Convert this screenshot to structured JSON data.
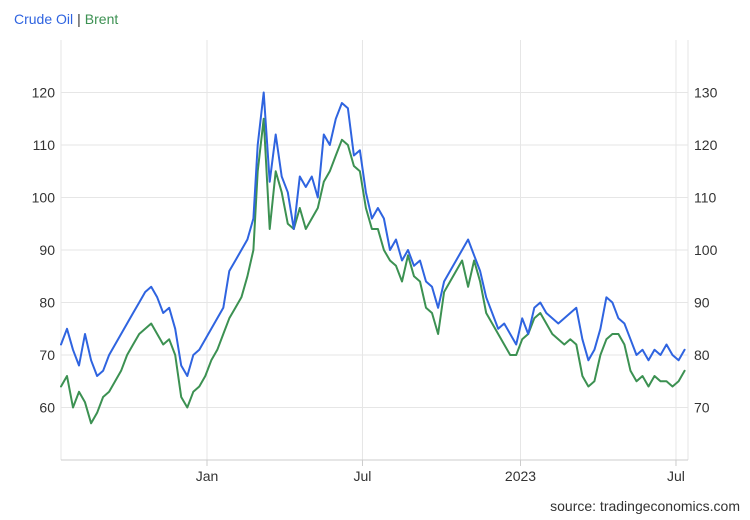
{
  "legend": {
    "series_1": "Crude Oil",
    "separator": "|",
    "series_2": "Brent"
  },
  "source": "source: tradingeconomics.com",
  "colors": {
    "crude": "#2f64e0",
    "brent": "#3c9152",
    "grid": "#e6e6e6",
    "axis": "#cccccc"
  },
  "chart_data": {
    "type": "line",
    "title": "",
    "legend_placement": "top-left",
    "grid": true,
    "x_tick_labels": [
      "Jan",
      "Jul",
      "2023",
      "Jul"
    ],
    "x_tick_dates": [
      "2022-01-01",
      "2022-07-01",
      "2023-01-01",
      "2023-07-01"
    ],
    "x_range": [
      "2021-07-15",
      "2023-07-15"
    ],
    "y_left": {
      "range": [
        50,
        130
      ],
      "ticks": [
        60,
        70,
        80,
        90,
        100,
        110,
        120
      ]
    },
    "y_right": {
      "range": [
        60,
        140
      ],
      "ticks": [
        70,
        80,
        90,
        100,
        110,
        120,
        130
      ]
    },
    "series": [
      {
        "name": "Crude Oil",
        "axis": "left",
        "x": [
          "2021-07-15",
          "2021-07-22",
          "2021-07-29",
          "2021-08-05",
          "2021-08-12",
          "2021-08-19",
          "2021-08-26",
          "2021-09-02",
          "2021-09-09",
          "2021-09-16",
          "2021-09-23",
          "2021-09-30",
          "2021-10-07",
          "2021-10-14",
          "2021-10-21",
          "2021-10-28",
          "2021-11-04",
          "2021-11-11",
          "2021-11-18",
          "2021-11-25",
          "2021-12-02",
          "2021-12-09",
          "2021-12-16",
          "2021-12-23",
          "2021-12-30",
          "2022-01-06",
          "2022-01-13",
          "2022-01-20",
          "2022-01-27",
          "2022-02-03",
          "2022-02-10",
          "2022-02-17",
          "2022-02-24",
          "2022-03-01",
          "2022-03-08",
          "2022-03-15",
          "2022-03-22",
          "2022-03-29",
          "2022-04-05",
          "2022-04-12",
          "2022-04-19",
          "2022-04-26",
          "2022-05-03",
          "2022-05-10",
          "2022-05-17",
          "2022-05-24",
          "2022-05-31",
          "2022-06-07",
          "2022-06-14",
          "2022-06-21",
          "2022-06-28",
          "2022-07-05",
          "2022-07-12",
          "2022-07-19",
          "2022-07-26",
          "2022-08-02",
          "2022-08-09",
          "2022-08-16",
          "2022-08-23",
          "2022-08-30",
          "2022-09-06",
          "2022-09-13",
          "2022-09-20",
          "2022-09-27",
          "2022-10-04",
          "2022-10-11",
          "2022-10-18",
          "2022-10-25",
          "2022-11-01",
          "2022-11-08",
          "2022-11-15",
          "2022-11-22",
          "2022-11-29",
          "2022-12-06",
          "2022-12-13",
          "2022-12-20",
          "2022-12-27",
          "2023-01-03",
          "2023-01-10",
          "2023-01-17",
          "2023-01-24",
          "2023-01-31",
          "2023-02-07",
          "2023-02-14",
          "2023-02-21",
          "2023-02-28",
          "2023-03-07",
          "2023-03-14",
          "2023-03-21",
          "2023-03-28",
          "2023-04-04",
          "2023-04-11",
          "2023-04-18",
          "2023-04-25",
          "2023-05-02",
          "2023-05-09",
          "2023-05-16",
          "2023-05-23",
          "2023-05-30",
          "2023-06-06",
          "2023-06-13",
          "2023-06-20",
          "2023-06-27",
          "2023-07-04",
          "2023-07-11"
        ],
        "values": [
          72,
          75,
          71,
          68,
          74,
          69,
          66,
          67,
          70,
          72,
          74,
          76,
          78,
          80,
          82,
          83,
          81,
          78,
          79,
          75,
          68,
          66,
          70,
          71,
          73,
          75,
          77,
          79,
          86,
          88,
          90,
          92,
          96,
          110,
          120,
          103,
          112,
          104,
          101,
          94,
          104,
          102,
          104,
          100,
          112,
          110,
          115,
          118,
          117,
          108,
          109,
          101,
          96,
          98,
          96,
          90,
          92,
          88,
          90,
          87,
          88,
          84,
          83,
          79,
          84,
          86,
          88,
          90,
          92,
          89,
          86,
          81,
          78,
          75,
          76,
          74,
          72,
          77,
          74,
          79,
          80,
          78,
          77,
          76,
          77,
          78,
          79,
          73,
          69,
          71,
          75,
          81,
          80,
          77,
          76,
          73,
          70,
          71,
          69,
          71,
          70,
          72,
          70,
          69,
          71
        ]
      },
      {
        "name": "Brent",
        "axis": "right",
        "x": [
          "2021-07-15",
          "2021-07-22",
          "2021-07-29",
          "2021-08-05",
          "2021-08-12",
          "2021-08-19",
          "2021-08-26",
          "2021-09-02",
          "2021-09-09",
          "2021-09-16",
          "2021-09-23",
          "2021-09-30",
          "2021-10-07",
          "2021-10-14",
          "2021-10-21",
          "2021-10-28",
          "2021-11-04",
          "2021-11-11",
          "2021-11-18",
          "2021-11-25",
          "2021-12-02",
          "2021-12-09",
          "2021-12-16",
          "2021-12-23",
          "2021-12-30",
          "2022-01-06",
          "2022-01-13",
          "2022-01-20",
          "2022-01-27",
          "2022-02-03",
          "2022-02-10",
          "2022-02-17",
          "2022-02-24",
          "2022-03-01",
          "2022-03-08",
          "2022-03-15",
          "2022-03-22",
          "2022-03-29",
          "2022-04-05",
          "2022-04-12",
          "2022-04-19",
          "2022-04-26",
          "2022-05-03",
          "2022-05-10",
          "2022-05-17",
          "2022-05-24",
          "2022-05-31",
          "2022-06-07",
          "2022-06-14",
          "2022-06-21",
          "2022-06-28",
          "2022-07-05",
          "2022-07-12",
          "2022-07-19",
          "2022-07-26",
          "2022-08-02",
          "2022-08-09",
          "2022-08-16",
          "2022-08-23",
          "2022-08-30",
          "2022-09-06",
          "2022-09-13",
          "2022-09-20",
          "2022-09-27",
          "2022-10-04",
          "2022-10-11",
          "2022-10-18",
          "2022-10-25",
          "2022-11-01",
          "2022-11-08",
          "2022-11-15",
          "2022-11-22",
          "2022-11-29",
          "2022-12-06",
          "2022-12-13",
          "2022-12-20",
          "2022-12-27",
          "2023-01-03",
          "2023-01-10",
          "2023-01-17",
          "2023-01-24",
          "2023-01-31",
          "2023-02-07",
          "2023-02-14",
          "2023-02-21",
          "2023-02-28",
          "2023-03-07",
          "2023-03-14",
          "2023-03-21",
          "2023-03-28",
          "2023-04-04",
          "2023-04-11",
          "2023-04-18",
          "2023-04-25",
          "2023-05-02",
          "2023-05-09",
          "2023-05-16",
          "2023-05-23",
          "2023-05-30",
          "2023-06-06",
          "2023-06-13",
          "2023-06-20",
          "2023-06-27",
          "2023-07-04",
          "2023-07-11"
        ],
        "values": [
          74,
          76,
          70,
          73,
          71,
          67,
          69,
          72,
          73,
          75,
          77,
          80,
          82,
          84,
          85,
          86,
          84,
          82,
          83,
          80,
          72,
          70,
          73,
          74,
          76,
          79,
          81,
          84,
          87,
          89,
          91,
          95,
          100,
          115,
          125,
          104,
          115,
          111,
          105,
          104,
          108,
          104,
          106,
          108,
          113,
          115,
          118,
          121,
          120,
          116,
          115,
          108,
          104,
          104,
          100,
          98,
          97,
          94,
          99,
          95,
          94,
          89,
          88,
          84,
          92,
          94,
          96,
          98,
          93,
          98,
          94,
          88,
          86,
          84,
          82,
          80,
          80,
          83,
          84,
          87,
          88,
          86,
          84,
          83,
          82,
          83,
          82,
          76,
          74,
          75,
          80,
          83,
          84,
          84,
          82,
          77,
          75,
          76,
          74,
          76,
          75,
          75,
          74,
          75,
          77
        ]
      }
    ]
  }
}
